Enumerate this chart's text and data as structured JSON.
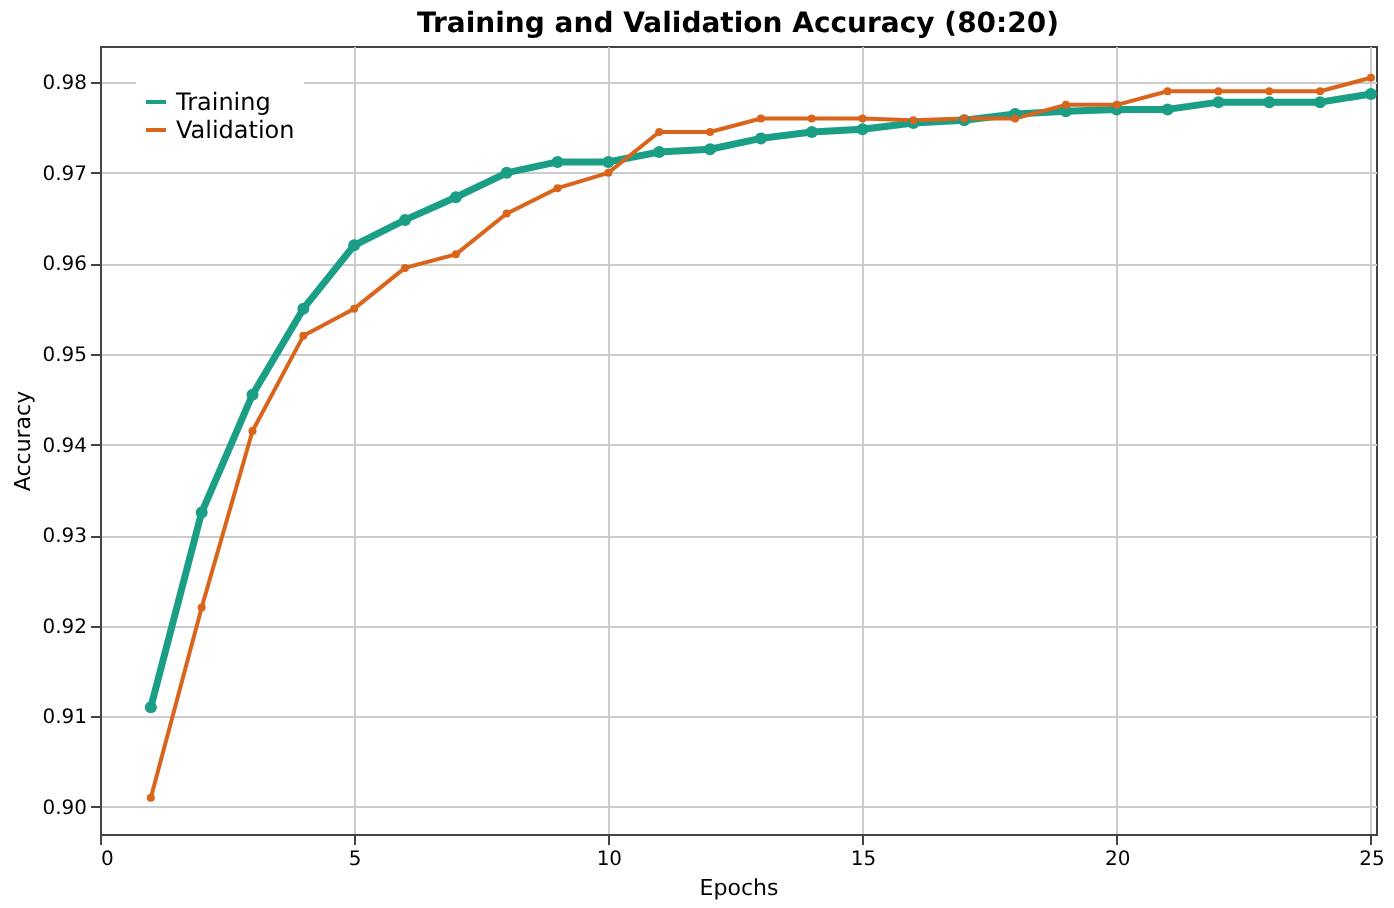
{
  "chart_data": {
    "type": "line",
    "title": "Training and Validation Accuracy (80:20)",
    "xlabel": "Epochs",
    "ylabel": "Accuracy",
    "x": [
      1,
      2,
      3,
      4,
      5,
      6,
      7,
      8,
      9,
      10,
      11,
      12,
      13,
      14,
      15,
      16,
      17,
      18,
      19,
      20,
      21,
      22,
      23,
      24,
      25
    ],
    "series": [
      {
        "name": "Training",
        "color": "#1a9e85",
        "values": [
          0.911,
          0.9325,
          0.9455,
          0.955,
          0.962,
          0.9648,
          0.9673,
          0.97,
          0.9712,
          0.9712,
          0.9723,
          0.9726,
          0.9738,
          0.9745,
          0.9748,
          0.9755,
          0.9758,
          0.9765,
          0.9768,
          0.977,
          0.977,
          0.9778,
          0.9778,
          0.9778,
          0.9787
        ]
      },
      {
        "name": "Validation",
        "color": "#d9651c",
        "values": [
          0.901,
          0.922,
          0.9415,
          0.952,
          0.955,
          0.9595,
          0.961,
          0.9655,
          0.9683,
          0.97,
          0.9745,
          0.9745,
          0.976,
          0.976,
          0.976,
          0.9758,
          0.976,
          0.976,
          0.9775,
          0.9775,
          0.979,
          0.979,
          0.979,
          0.979,
          0.9805
        ]
      }
    ],
    "xlim": [
      0,
      25.1
    ],
    "xticks": [
      0,
      5,
      10,
      15,
      20,
      25
    ],
    "ylim": [
      0.897,
      0.984
    ],
    "yticks": [
      {
        "value": 0.9,
        "label": "0.90"
      },
      {
        "value": 0.91,
        "label": "0.91"
      },
      {
        "value": 0.92,
        "label": "0.92"
      },
      {
        "value": 0.93,
        "label": "0.93"
      },
      {
        "value": 0.94,
        "label": "0.94"
      },
      {
        "value": 0.95,
        "label": "0.95"
      },
      {
        "value": 0.96,
        "label": "0.96"
      },
      {
        "value": 0.97,
        "label": "0.97"
      },
      {
        "value": 0.98,
        "label": "0.98"
      }
    ],
    "grid": true,
    "legend": "top left",
    "marker": "circle",
    "line_style": "solid"
  }
}
